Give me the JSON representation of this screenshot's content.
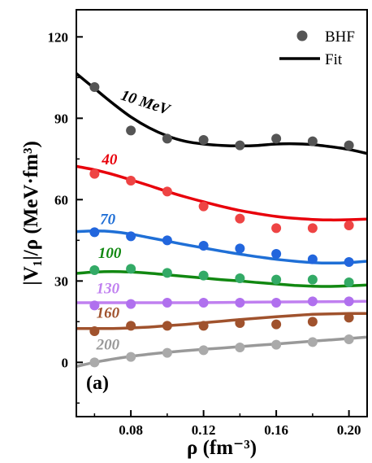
{
  "chart_data": {
    "type": "scatter",
    "panel_label": "(a)",
    "xlabel": "ρ (fm⁻³)",
    "ylabel": "|V₁|/ρ (MeV·fm³)",
    "xlim": [
      0.05,
      0.21
    ],
    "ylim": [
      -20,
      130
    ],
    "xticks": [
      0.08,
      0.12,
      0.16,
      0.2
    ],
    "xtick_labels": [
      "0.08",
      "0.12",
      "0.16",
      "0.20"
    ],
    "yticks": [
      0,
      30,
      60,
      90,
      120
    ],
    "ytick_labels": [
      "0",
      "30",
      "60",
      "90",
      "120"
    ],
    "grid": false,
    "legend": {
      "placement": "top-right",
      "items": [
        {
          "label": "BHF",
          "kind": "marker",
          "color": "#555555"
        },
        {
          "label": "Fit",
          "kind": "line",
          "color": "#000000"
        }
      ]
    },
    "series": [
      {
        "name": "10 MeV",
        "color": "#000000",
        "marker_color": "#555555",
        "label_pos": [
          0.074,
          97
        ],
        "label_rotate": 18,
        "bhf": {
          "x": [
            0.06,
            0.08,
            0.1,
            0.12,
            0.14,
            0.16,
            0.18,
            0.2
          ],
          "y": [
            101.5,
            85.5,
            82.5,
            82,
            80,
            82.5,
            81.5,
            80
          ]
        },
        "fit": {
          "x": [
            0.05,
            0.06,
            0.07,
            0.08,
            0.09,
            0.1,
            0.11,
            0.12,
            0.13,
            0.14,
            0.15,
            0.16,
            0.17,
            0.18,
            0.19,
            0.2,
            0.21
          ],
          "y": [
            106.5,
            101,
            95.5,
            90.5,
            86.5,
            83.5,
            81.5,
            80.5,
            80,
            79.8,
            80,
            80.5,
            80.6,
            80.3,
            79.5,
            78.5,
            77
          ]
        }
      },
      {
        "name": "40",
        "color": "#e8000b",
        "marker_color": "#ee4444",
        "label_pos": [
          0.064,
          73
        ],
        "label_rotate": 0,
        "bhf": {
          "x": [
            0.06,
            0.08,
            0.1,
            0.12,
            0.14,
            0.16,
            0.18,
            0.2
          ],
          "y": [
            69.5,
            67,
            63,
            57.5,
            53,
            49.5,
            49.5,
            50.5
          ]
        },
        "fit": {
          "x": [
            0.05,
            0.06,
            0.07,
            0.08,
            0.09,
            0.1,
            0.11,
            0.12,
            0.13,
            0.14,
            0.15,
            0.16,
            0.17,
            0.18,
            0.19,
            0.2,
            0.21
          ],
          "y": [
            72.3,
            71,
            69.3,
            67.3,
            65.2,
            63,
            61,
            59.2,
            57.5,
            56,
            54.8,
            53.8,
            53.1,
            52.7,
            52.5,
            52.6,
            52.8
          ]
        }
      },
      {
        "name": "70",
        "color": "#1f6fd6",
        "marker_color": "#2266dd",
        "label_pos": [
          0.063,
          51
        ],
        "label_rotate": 0,
        "bhf": {
          "x": [
            0.06,
            0.08,
            0.1,
            0.12,
            0.14,
            0.16,
            0.18,
            0.2
          ],
          "y": [
            48,
            46.5,
            45,
            43,
            42,
            40,
            38,
            37
          ]
        },
        "fit": {
          "x": [
            0.05,
            0.06,
            0.07,
            0.08,
            0.09,
            0.1,
            0.11,
            0.12,
            0.13,
            0.14,
            0.15,
            0.16,
            0.17,
            0.18,
            0.19,
            0.2,
            0.21
          ],
          "y": [
            48.2,
            48.5,
            48.2,
            47.3,
            46,
            44.7,
            43.4,
            42.2,
            41,
            39.9,
            38.9,
            38,
            37.3,
            36.8,
            36.6,
            36.8,
            37.3
          ]
        }
      },
      {
        "name": "100",
        "color": "#118811",
        "marker_color": "#33aa66",
        "label_pos": [
          0.062,
          38.5
        ],
        "label_rotate": 0,
        "bhf": {
          "x": [
            0.06,
            0.08,
            0.1,
            0.12,
            0.14,
            0.16,
            0.18,
            0.2
          ],
          "y": [
            34,
            34.5,
            33,
            32,
            31,
            30.5,
            30.5,
            29.5
          ]
        },
        "fit": {
          "x": [
            0.05,
            0.06,
            0.07,
            0.08,
            0.09,
            0.1,
            0.11,
            0.12,
            0.13,
            0.14,
            0.15,
            0.16,
            0.17,
            0.18,
            0.19,
            0.2,
            0.21
          ],
          "y": [
            32.8,
            33.3,
            33.5,
            33.3,
            32.9,
            32.3,
            31.7,
            31.1,
            30.5,
            30,
            29.4,
            28.9,
            28.4,
            28.1,
            28,
            28.2,
            28.5
          ]
        }
      },
      {
        "name": "130",
        "color": "#c080f0",
        "marker_color": "#b070ee",
        "label_pos": [
          0.061,
          25.5
        ],
        "label_rotate": 0,
        "bhf": {
          "x": [
            0.06,
            0.08,
            0.1,
            0.12,
            0.14,
            0.16,
            0.18,
            0.2
          ],
          "y": [
            21,
            21.5,
            22,
            22,
            22,
            22,
            22.5,
            22.5
          ]
        },
        "fit": {
          "x": [
            0.05,
            0.07,
            0.09,
            0.11,
            0.13,
            0.15,
            0.17,
            0.19,
            0.21
          ],
          "y": [
            22,
            22,
            22,
            22,
            22.1,
            22.2,
            22.3,
            22.4,
            22.5
          ]
        }
      },
      {
        "name": "160",
        "color": "#a0522d",
        "marker_color": "#a0522d",
        "label_pos": [
          0.061,
          16.5
        ],
        "label_rotate": 0,
        "bhf": {
          "x": [
            0.06,
            0.08,
            0.1,
            0.12,
            0.14,
            0.16,
            0.18,
            0.2
          ],
          "y": [
            11.5,
            13.5,
            13.5,
            13.5,
            14.5,
            14,
            15,
            16.5
          ]
        },
        "fit": {
          "x": [
            0.05,
            0.06,
            0.07,
            0.08,
            0.09,
            0.1,
            0.11,
            0.12,
            0.13,
            0.14,
            0.15,
            0.16,
            0.17,
            0.18,
            0.19,
            0.2,
            0.21
          ],
          "y": [
            12.5,
            12.5,
            12.5,
            12.7,
            13,
            13.5,
            14,
            14.6,
            15.2,
            15.8,
            16.3,
            16.8,
            17.3,
            17.7,
            17.9,
            18,
            18
          ]
        }
      },
      {
        "name": "200",
        "color": "#999999",
        "marker_color": "#aaaaaa",
        "label_pos": [
          0.061,
          4.8
        ],
        "label_rotate": 0,
        "bhf": {
          "x": [
            0.06,
            0.08,
            0.1,
            0.12,
            0.14,
            0.16,
            0.18,
            0.2
          ],
          "y": [
            0,
            2,
            3.5,
            4.5,
            5.5,
            6.5,
            7.5,
            8.5
          ]
        },
        "fit": {
          "x": [
            0.05,
            0.06,
            0.07,
            0.08,
            0.09,
            0.1,
            0.11,
            0.12,
            0.13,
            0.14,
            0.15,
            0.16,
            0.17,
            0.18,
            0.19,
            0.2,
            0.21
          ],
          "y": [
            -1.5,
            0,
            1.2,
            2.2,
            3,
            3.7,
            4.3,
            4.8,
            5.3,
            5.8,
            6.3,
            6.8,
            7.3,
            7.8,
            8.3,
            8.8,
            9.3
          ]
        }
      }
    ]
  }
}
